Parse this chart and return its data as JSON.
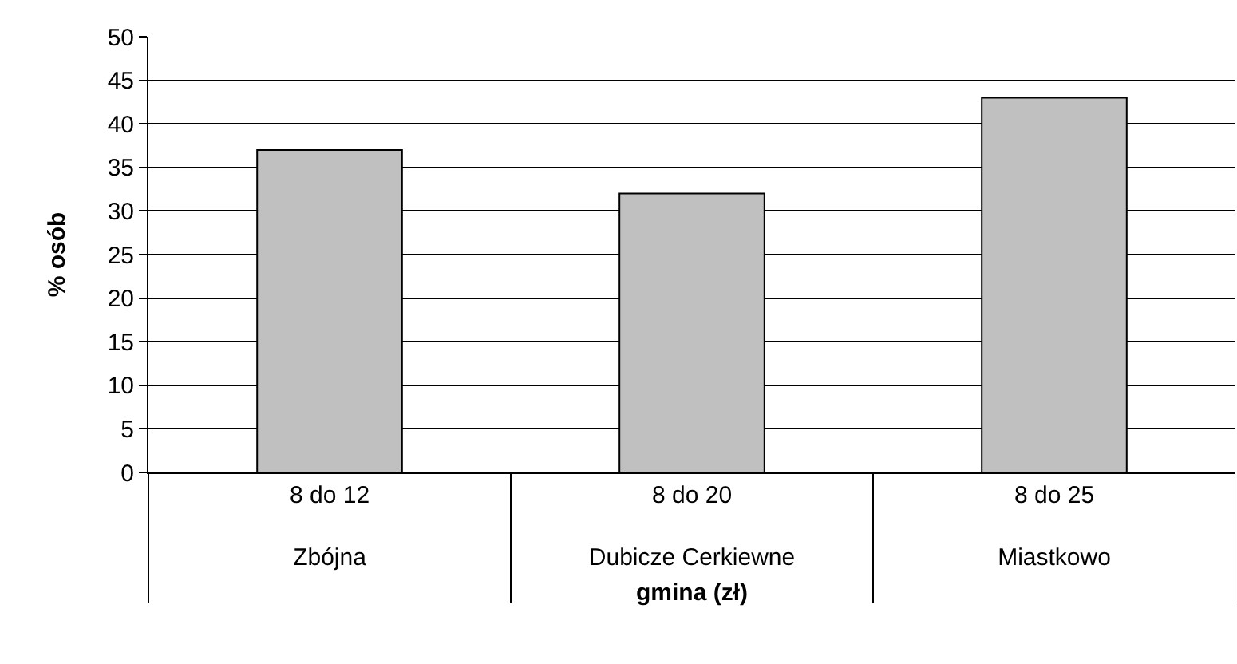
{
  "chart_data": {
    "type": "bar",
    "categories": [
      "8 do 12\nZbójna",
      "8 do 20\nDubicze Cerkiewne",
      "8 do 25\nMiastkowo"
    ],
    "values": [
      37,
      32,
      43
    ],
    "color": "#c0c0c0",
    "xlabel": "gmina (zł)",
    "ylabel": "% osób",
    "ylim": [
      0,
      50
    ],
    "yticks": [
      0,
      5,
      10,
      15,
      20,
      25,
      30,
      35,
      40,
      45,
      50
    ],
    "grid": "y"
  }
}
